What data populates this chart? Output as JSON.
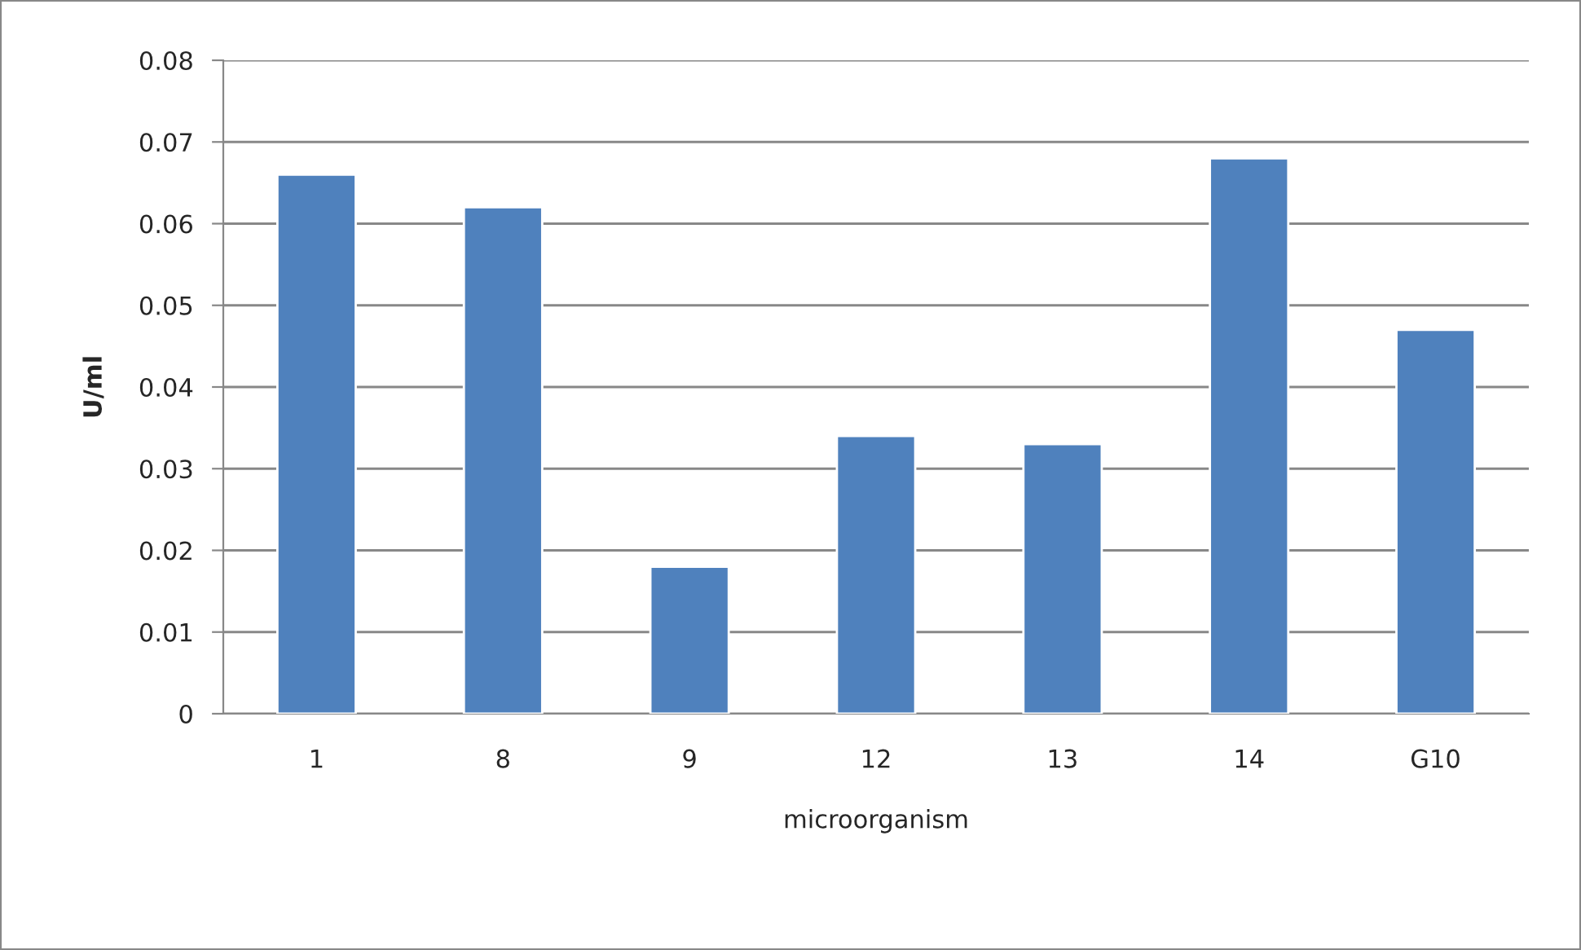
{
  "chart_data": {
    "type": "bar",
    "xlabel": "microorganism",
    "ylabel": "U/ml",
    "categories": [
      "1",
      "8",
      "9",
      "12",
      "13",
      "14",
      "G10"
    ],
    "values": [
      0.066,
      0.062,
      0.018,
      0.034,
      0.033,
      0.068,
      0.047
    ],
    "color": "#4f81bd",
    "ylim": [
      0,
      0.08
    ],
    "yticks": [
      {
        "value": 0,
        "label": "0"
      },
      0.01,
      0.02,
      0.03,
      0.04,
      0.05,
      0.06,
      0.07,
      0.08
    ],
    "grid": "y",
    "legend": false
  }
}
